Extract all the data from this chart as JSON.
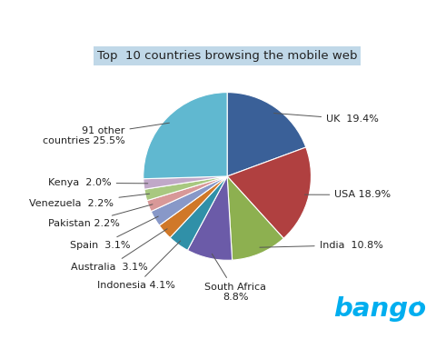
{
  "title": "Top  10 countries browsing the mobile web",
  "slices": [
    {
      "label": "UK  19.4%",
      "value": 19.4,
      "color": "#3A6098"
    },
    {
      "label": "USA 18.9%",
      "value": 18.9,
      "color": "#B04040"
    },
    {
      "label": "India  10.8%",
      "value": 10.8,
      "color": "#8DB050"
    },
    {
      "label": "South Africa\n8.8%",
      "value": 8.8,
      "color": "#6B5BA8"
    },
    {
      "label": "Indonesia 4.1%",
      "value": 4.1,
      "color": "#3090A8"
    },
    {
      "label": "Australia  3.1%",
      "value": 3.1,
      "color": "#D07828"
    },
    {
      "label": "Spain  3.1%",
      "value": 3.1,
      "color": "#8898C8"
    },
    {
      "label": "Pakistan 2.2%",
      "value": 2.2,
      "color": "#D89898"
    },
    {
      "label": "Venezuela  2.2%",
      "value": 2.2,
      "color": "#A8C880"
    },
    {
      "label": "Kenya  2.0%",
      "value": 2.0,
      "color": "#C0A8C8"
    },
    {
      "label": "91 other\ncountries 25.5%",
      "value": 25.5,
      "color": "#60B8D0"
    }
  ],
  "bango_color": "#00AEEF",
  "title_bg": "#C0D8E8",
  "background_color": "#FFFFFF",
  "fontsize": 8.0
}
